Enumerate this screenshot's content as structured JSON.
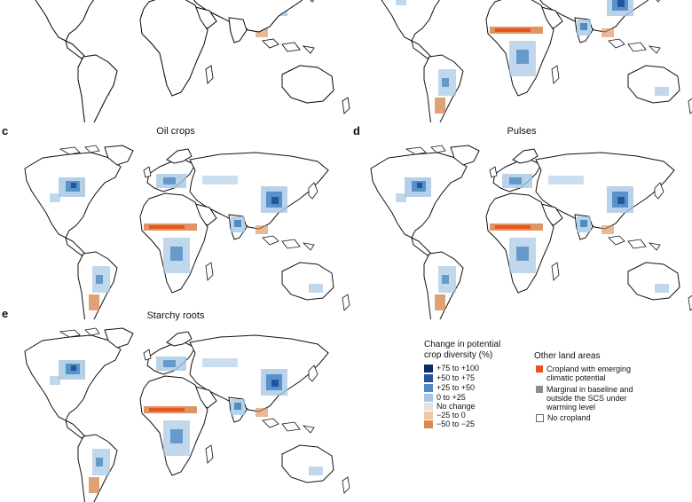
{
  "panels": [
    {
      "id": "top-left",
      "letter": "",
      "title": ""
    },
    {
      "id": "top-right",
      "letter": "",
      "title": ""
    },
    {
      "id": "c",
      "letter": "c",
      "title": "Oil crops"
    },
    {
      "id": "d",
      "letter": "d",
      "title": "Pulses"
    },
    {
      "id": "e",
      "letter": "e",
      "title": "Starchy roots"
    }
  ],
  "legend": {
    "title_line1": "Change in potential",
    "title_line2": "crop diversity (%)",
    "items": [
      {
        "label": "+75 to +100",
        "color": "#0c2a6b"
      },
      {
        "label": "+50 to +75",
        "color": "#24559c"
      },
      {
        "label": "+25 to +50",
        "color": "#4f8bc4"
      },
      {
        "label": "0 to +25",
        "color": "#a6c8e4"
      },
      {
        "label": "No change",
        "color": "#e3e3e3"
      },
      {
        "label": "−25 to 0",
        "color": "#f2c7a3"
      },
      {
        "label": "−50 to −25",
        "color": "#d98a55"
      }
    ]
  },
  "other_land": {
    "title": "Other land areas",
    "items": [
      {
        "label_line1": "Cropland with emerging",
        "label_line2": "climatic potential",
        "label_line3": "",
        "color": "#e8541e"
      },
      {
        "label_line1": "Marginal in baseline and",
        "label_line2": "outside the SCS under",
        "label_line3": "warming level",
        "color": "#8c8c8c"
      },
      {
        "label_line1": "No cropland",
        "label_line2": "",
        "label_line3": "",
        "color": "#ffffff"
      }
    ]
  }
}
